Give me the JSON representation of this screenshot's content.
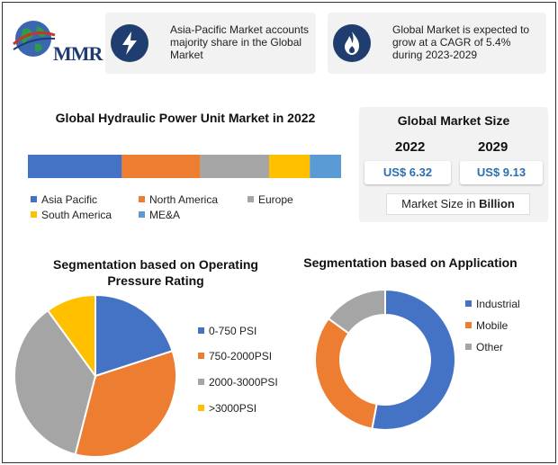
{
  "logo": {
    "text": "MMR"
  },
  "cards": {
    "left_text": "Asia-Pacific Market accounts majority share in the Global Market",
    "right_text": "Global Market is expected to grow at a CAGR of 5.4% during 2023-2029"
  },
  "market_size": {
    "title": "Global Market Size",
    "year1": "2022",
    "value1": "US$ 6.32",
    "year2": "2029",
    "value2": "US$ 9.13",
    "note_prefix": "Market Size in ",
    "note_unit": "Billion"
  },
  "colors": {
    "blue": "#4472c4",
    "orange": "#ed7d31",
    "gray": "#a5a5a5",
    "yellow": "#ffc000",
    "lightblue": "#5b9bd5",
    "navy": "#1f3d6e"
  },
  "chart_data": [
    {
      "type": "bar",
      "stacked": true,
      "orientation": "horizontal",
      "title": "Global Hydraulic Power Unit Market in 2022",
      "series": [
        {
          "name": "Asia Pacific",
          "value": 30,
          "color": "#4472c4"
        },
        {
          "name": "North America",
          "value": 25,
          "color": "#ed7d31"
        },
        {
          "name": "Europe",
          "value": 22,
          "color": "#a5a5a5"
        },
        {
          "name": "South America",
          "value": 13,
          "color": "#ffc000"
        },
        {
          "name": "ME&A",
          "value": 10,
          "color": "#5b9bd5"
        }
      ]
    },
    {
      "type": "pie",
      "title": "Segmentation based on Operating Pressure Rating",
      "title_lines": [
        "Segmentation based on Operating",
        "Pressure Rating"
      ],
      "slices": [
        {
          "label": "0-750 PSI",
          "value": 20,
          "color": "#4472c4"
        },
        {
          "label": "750-2000PSI",
          "value": 34,
          "color": "#ed7d31"
        },
        {
          "label": "2000-3000PSI",
          "value": 36,
          "color": "#a5a5a5"
        },
        {
          "label": ">3000PSI",
          "value": 10,
          "color": "#ffc000"
        }
      ]
    },
    {
      "type": "pie",
      "donut": true,
      "title": "Segmentation based on Application",
      "slices": [
        {
          "label": "Industrial",
          "value": 53,
          "color": "#4472c4"
        },
        {
          "label": "Mobile",
          "value": 32,
          "color": "#ed7d31"
        },
        {
          "label": "Other",
          "value": 15,
          "color": "#a5a5a5"
        }
      ]
    }
  ]
}
